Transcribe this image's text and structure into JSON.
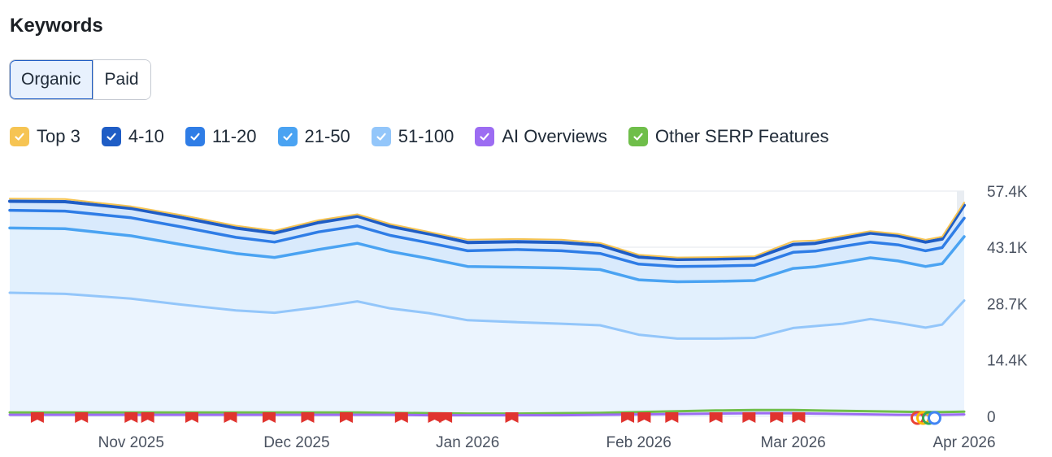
{
  "header": {
    "title": "Keywords"
  },
  "toggle": {
    "options": [
      "Organic",
      "Paid"
    ],
    "selected": "Organic"
  },
  "legend": [
    {
      "label": "Top 3",
      "color": "#f6c453",
      "checked": true
    },
    {
      "label": "4-10",
      "color": "#1f5dc5",
      "checked": true
    },
    {
      "label": "11-20",
      "color": "#2f7de6",
      "checked": true
    },
    {
      "label": "21-50",
      "color": "#4aa3f2",
      "checked": true
    },
    {
      "label": "51-100",
      "color": "#93c6fa",
      "checked": true
    },
    {
      "label": "AI Overviews",
      "color": "#9c6cf2",
      "checked": true
    },
    {
      "label": "Other SERP Features",
      "color": "#6fbe4a",
      "checked": true
    }
  ],
  "chart_data": {
    "type": "area",
    "stacked": true,
    "x": [
      "2025-10-10",
      "2025-10-20",
      "2025-11-01",
      "2025-11-10",
      "2025-11-20",
      "2025-11-27",
      "2025-12-05",
      "2025-12-12",
      "2025-12-18",
      "2025-12-25",
      "2026-01-01",
      "2026-01-10",
      "2026-01-18",
      "2026-01-25",
      "2026-02-01",
      "2026-02-08",
      "2026-02-15",
      "2026-02-22",
      "2026-03-01",
      "2026-03-05",
      "2026-03-10",
      "2026-03-15",
      "2026-03-20",
      "2026-03-25",
      "2026-03-28",
      "2026-04-01"
    ],
    "series": [
      {
        "name": "Top 3",
        "cumulative": [
          55.5,
          55.4,
          53.5,
          51.3,
          48.6,
          47.3,
          50.0,
          51.5,
          49.0,
          47.0,
          45.0,
          45.2,
          45.0,
          44.2,
          41.2,
          40.5,
          40.6,
          40.8,
          44.6,
          44.8,
          46.0,
          47.2,
          46.5,
          45.0,
          45.8,
          54.5
        ]
      },
      {
        "name": "4-10",
        "cumulative": [
          54.8,
          54.7,
          53.0,
          50.7,
          48.0,
          46.7,
          49.4,
          51.0,
          48.4,
          46.5,
          44.3,
          44.5,
          44.3,
          43.6,
          40.6,
          40.0,
          40.1,
          40.3,
          43.8,
          44.1,
          45.4,
          46.7,
          46.0,
          44.4,
          45.2,
          53.8
        ]
      },
      {
        "name": "11-20",
        "cumulative": [
          52.5,
          52.3,
          50.6,
          48.3,
          45.6,
          44.4,
          47.0,
          48.5,
          46.1,
          44.2,
          42.2,
          42.5,
          42.2,
          41.5,
          38.8,
          38.2,
          38.3,
          38.5,
          41.8,
          42.1,
          43.3,
          44.4,
          43.7,
          42.2,
          43.0,
          50.5
        ]
      },
      {
        "name": "21-50",
        "cumulative": [
          48.0,
          47.8,
          46.0,
          43.8,
          41.5,
          40.5,
          42.5,
          44.1,
          42.0,
          40.2,
          38.2,
          38.0,
          37.8,
          37.4,
          34.8,
          34.3,
          34.4,
          34.6,
          37.7,
          38.1,
          39.2,
          40.4,
          39.6,
          38.2,
          38.9,
          45.8
        ]
      },
      {
        "name": "51-100",
        "cumulative": [
          31.5,
          31.2,
          30.0,
          28.5,
          27.0,
          26.4,
          27.8,
          29.3,
          27.5,
          26.3,
          24.5,
          24.0,
          23.6,
          23.2,
          20.8,
          19.8,
          19.8,
          20.0,
          22.5,
          23.0,
          23.6,
          24.8,
          23.8,
          22.6,
          23.4,
          29.5
        ]
      },
      {
        "name": "AI Overviews",
        "cumulative": [
          0.4,
          0.4,
          0.4,
          0.4,
          0.4,
          0.4,
          0.4,
          0.4,
          0.4,
          0.3,
          0.3,
          0.3,
          0.3,
          0.4,
          0.5,
          0.6,
          0.7,
          0.8,
          0.8,
          0.7,
          0.6,
          0.5,
          0.4,
          0.4,
          0.4,
          0.5
        ]
      },
      {
        "name": "Other SERP Features",
        "cumulative": [
          1.0,
          1.0,
          1.0,
          1.0,
          1.0,
          1.0,
          1.0,
          1.0,
          0.9,
          0.8,
          0.7,
          0.7,
          0.8,
          0.9,
          1.1,
          1.3,
          1.5,
          1.6,
          1.6,
          1.5,
          1.4,
          1.3,
          1.2,
          1.1,
          1.1,
          1.2
        ]
      }
    ],
    "y_ticks": [
      {
        "value": 57.4,
        "label": "57.4K"
      },
      {
        "value": 43.1,
        "label": "43.1K"
      },
      {
        "value": 28.7,
        "label": "28.7K"
      },
      {
        "value": 14.4,
        "label": "14.4K"
      },
      {
        "value": 0,
        "label": "0"
      }
    ],
    "x_ticks": [
      {
        "date": "2025-11-01",
        "label": "Nov 2025"
      },
      {
        "date": "2025-12-01",
        "label": "Dec 2025"
      },
      {
        "date": "2026-01-01",
        "label": "Jan 2026"
      },
      {
        "date": "2026-02-01",
        "label": "Feb 2026"
      },
      {
        "date": "2026-03-01",
        "label": "Mar 2026"
      },
      {
        "date": "2026-04-01",
        "label": "Apr 2026"
      }
    ],
    "x_range": [
      "2025-10-10",
      "2026-04-01"
    ],
    "ylim": [
      0,
      57.4
    ],
    "grid": true,
    "legend_placement": "top",
    "event_markers": [
      "2025-10-15",
      "2025-10-23",
      "2025-11-01",
      "2025-11-04",
      "2025-11-12",
      "2025-11-19",
      "2025-11-26",
      "2025-12-03",
      "2025-12-10",
      "2025-12-20",
      "2025-12-26",
      "2025-12-28",
      "2026-01-09",
      "2026-01-30",
      "2026-02-02",
      "2026-02-07",
      "2026-02-15",
      "2026-02-21",
      "2026-02-26",
      "2026-03-02"
    ],
    "google_update_marker": {
      "date": "2026-03-25",
      "icon": "google-update-icon"
    }
  }
}
